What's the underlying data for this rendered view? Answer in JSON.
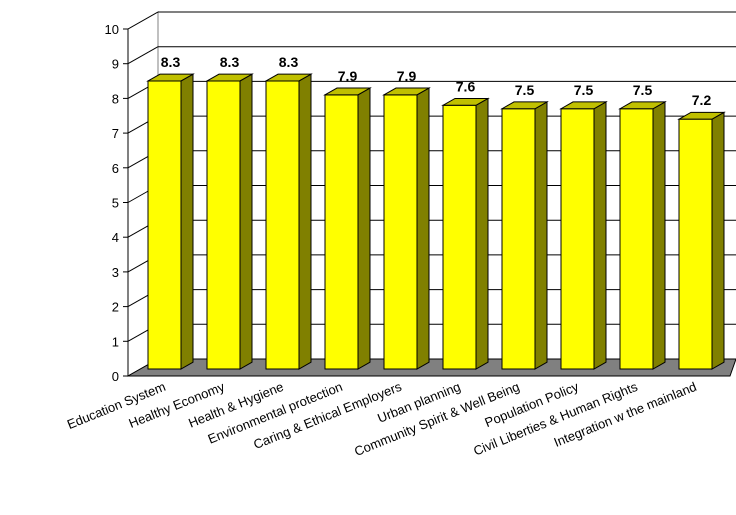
{
  "chart_data": {
    "type": "bar",
    "categories": [
      "Education System",
      "Healthy Economy",
      "Health & Hygiene",
      "Environmental protection",
      "Caring & Ethical Employers",
      "Urban planning",
      "Community Spirit & Well Being",
      "Population Policy",
      "Civil Liberties & Human Rights",
      "Integration w the mainland"
    ],
    "values": [
      8.3,
      8.3,
      8.3,
      7.9,
      7.9,
      7.6,
      7.5,
      7.5,
      7.5,
      7.2
    ],
    "data_labels": [
      "8.3",
      "8.3",
      "8.3",
      "7.9",
      "7.9",
      "7.6",
      "7.5",
      "7.5",
      "7.5",
      "7.2"
    ],
    "yticks": [
      0,
      1,
      2,
      3,
      4,
      5,
      6,
      7,
      8,
      9,
      10
    ],
    "ylim": [
      0,
      10
    ],
    "grid": true,
    "style": "3d",
    "colors": {
      "bar_front": "#ffff00",
      "bar_side": "#808000",
      "bar_top": "#c0c000",
      "floor": "#808080",
      "wall": "#ffffff",
      "grid": "#000000"
    }
  }
}
